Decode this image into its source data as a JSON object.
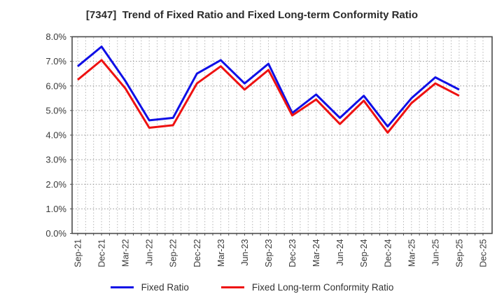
{
  "title": "[7347]  Trend of Fixed Ratio and Fixed Long-term Conformity Ratio",
  "chart_data": {
    "type": "line",
    "categories": [
      "Sep-21",
      "Dec-21",
      "Mar-22",
      "Jun-22",
      "Sep-22",
      "Dec-22",
      "Mar-23",
      "Jun-23",
      "Sep-23",
      "Dec-23",
      "Mar-24",
      "Jun-24",
      "Sep-24",
      "Dec-24",
      "Mar-25",
      "Jun-25",
      "Sep-25",
      "Dec-25"
    ],
    "series": [
      {
        "name": "Fixed Ratio",
        "color": "#0f0fe6",
        "values": [
          6.8,
          7.6,
          6.2,
          4.6,
          4.7,
          6.5,
          7.05,
          6.1,
          6.9,
          4.9,
          5.65,
          4.7,
          5.6,
          4.35,
          5.5,
          6.35,
          5.85
        ]
      },
      {
        "name": "Fixed Long-term Conformity Ratio",
        "color": "#ee1111",
        "values": [
          6.25,
          7.05,
          5.9,
          4.3,
          4.4,
          6.1,
          6.8,
          5.85,
          6.65,
          4.8,
          5.45,
          4.45,
          5.4,
          4.1,
          5.3,
          6.1,
          5.6
        ]
      }
    ],
    "y_ticks": [
      "0.0%",
      "1.0%",
      "2.0%",
      "3.0%",
      "4.0%",
      "5.0%",
      "6.0%",
      "7.0%",
      "8.0%"
    ],
    "ylim": [
      0,
      8
    ],
    "xlabel": "",
    "ylabel": "",
    "grid": "dotted",
    "minor_x_divisions": 3,
    "legend_position": "bottom",
    "axis_color": "#4a4a4a",
    "tick_label_color": "#3a3a3a",
    "grid_major_color": "#8f8f8f",
    "grid_minor_color": "#b4b4b4"
  }
}
